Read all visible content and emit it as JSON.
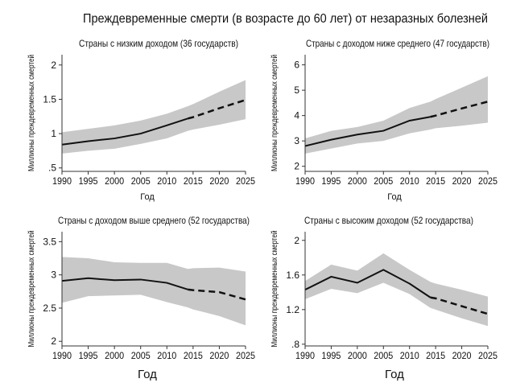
{
  "title": "Преждевременные смерти (в возрасте до 60 лет) от незаразных болезней",
  "chart_data": [
    {
      "type": "line",
      "title": "Страны с низким доходом (36 государств)",
      "xlabel": "Год",
      "ylabel": "Миллионы преждевременных смертей",
      "xlim": [
        1990,
        2025
      ],
      "ylim": [
        0.45,
        2.15
      ],
      "xticks": [
        "1990",
        "1995",
        "2000",
        "2005",
        "2010",
        "2015",
        "2020",
        "2025"
      ],
      "yticks": [
        {
          "v": 0.5,
          "label": ".5"
        },
        {
          "v": 1,
          "label": "1"
        },
        {
          "v": 1.5,
          "label": "1.5"
        },
        {
          "v": 2,
          "label": "2"
        }
      ],
      "x": [
        1990,
        1995,
        2000,
        2005,
        2010,
        2014,
        2015,
        2020,
        2025
      ],
      "mean": [
        0.84,
        0.89,
        0.93,
        1.0,
        1.12,
        1.22,
        1.24,
        1.37,
        1.49
      ],
      "lower": [
        0.71,
        0.75,
        0.78,
        0.85,
        0.93,
        1.04,
        1.06,
        1.13,
        1.21
      ],
      "upper": [
        1.02,
        1.07,
        1.12,
        1.19,
        1.29,
        1.4,
        1.43,
        1.61,
        1.78
      ],
      "projection_start": 2014
    },
    {
      "type": "line",
      "title": "Страны с доходом ниже среднего (47 государств)",
      "xlabel": "Год",
      "ylabel": "Миллионы преждевременных смертей",
      "xlim": [
        1990,
        2025
      ],
      "ylim": [
        1.8,
        6.4
      ],
      "xticks": [
        "1990",
        "1995",
        "2000",
        "2005",
        "2010",
        "2015",
        "2020",
        "2025"
      ],
      "yticks": [
        {
          "v": 2,
          "label": "2"
        },
        {
          "v": 3,
          "label": "3"
        },
        {
          "v": 4,
          "label": "4"
        },
        {
          "v": 5,
          "label": "5"
        },
        {
          "v": 6,
          "label": "6"
        }
      ],
      "x": [
        1990,
        1995,
        2000,
        2005,
        2010,
        2014,
        2015,
        2020,
        2025
      ],
      "mean": [
        2.8,
        3.05,
        3.25,
        3.4,
        3.8,
        3.95,
        4.0,
        4.28,
        4.55
      ],
      "lower": [
        2.5,
        2.7,
        2.9,
        3.0,
        3.3,
        3.45,
        3.5,
        3.6,
        3.72
      ],
      "upper": [
        3.1,
        3.4,
        3.55,
        3.8,
        4.3,
        4.55,
        4.65,
        5.1,
        5.55
      ],
      "projection_start": 2014
    },
    {
      "type": "line",
      "title": "Страны с доходом выше среднего (52 государства)",
      "xlabel": "Год",
      "ylabel": "Миллионы преждевременных смертей",
      "xlim": [
        1990,
        2025
      ],
      "ylim": [
        1.93,
        3.65
      ],
      "xticks": [
        "1990",
        "1995",
        "2000",
        "2005",
        "2010",
        "2015",
        "2020",
        "2025"
      ],
      "yticks": [
        {
          "v": 2,
          "label": "2"
        },
        {
          "v": 2.5,
          "label": "2.5"
        },
        {
          "v": 3,
          "label": "3"
        },
        {
          "v": 3.5,
          "label": "3.5"
        }
      ],
      "x": [
        1990,
        1995,
        2000,
        2005,
        2010,
        2014,
        2015,
        2020,
        2025
      ],
      "mean": [
        2.91,
        2.95,
        2.92,
        2.93,
        2.88,
        2.78,
        2.77,
        2.74,
        2.63
      ],
      "lower": [
        2.58,
        2.68,
        2.69,
        2.7,
        2.59,
        2.51,
        2.48,
        2.38,
        2.24
      ],
      "upper": [
        3.27,
        3.25,
        3.19,
        3.18,
        3.18,
        3.09,
        3.1,
        3.11,
        3.05
      ],
      "projection_start": 2014
    },
    {
      "type": "line",
      "title": "Страны с высоким доходом (52 государства)",
      "xlabel": "Год",
      "ylabel": "Миллионы преждевременных смертей",
      "xlim": [
        1990,
        2025
      ],
      "ylim": [
        0.78,
        2.1
      ],
      "xticks": [
        "1990",
        "1995",
        "2000",
        "2005",
        "2010",
        "2015",
        "2020",
        "2025"
      ],
      "yticks": [
        {
          "v": 0.8,
          "label": ".8"
        },
        {
          "v": 1.2,
          "label": "1.2"
        },
        {
          "v": 1.6,
          "label": "1.6"
        },
        {
          "v": 2,
          "label": "2"
        }
      ],
      "x": [
        1990,
        1995,
        2000,
        2005,
        2010,
        2014,
        2015,
        2020,
        2025
      ],
      "mean": [
        1.43,
        1.58,
        1.51,
        1.66,
        1.5,
        1.34,
        1.33,
        1.24,
        1.15
      ],
      "lower": [
        1.32,
        1.44,
        1.39,
        1.51,
        1.38,
        1.22,
        1.2,
        1.1,
        1.01
      ],
      "upper": [
        1.53,
        1.72,
        1.65,
        1.85,
        1.66,
        1.52,
        1.5,
        1.43,
        1.35
      ],
      "projection_start": 2014
    }
  ],
  "colors": {
    "band": "#c8c8c8",
    "line": "#111111"
  }
}
